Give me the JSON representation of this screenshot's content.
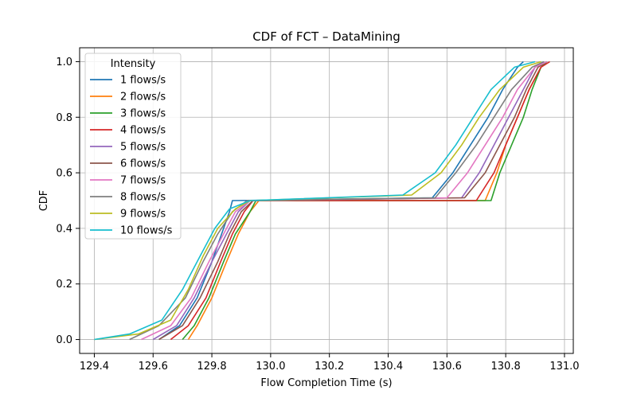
{
  "chart_data": {
    "type": "line",
    "title": "CDF of FCT – DataMining",
    "xlabel": "Flow Completion Time (s)",
    "ylabel": "CDF",
    "xlim": [
      129.35,
      131.03
    ],
    "ylim": [
      -0.05,
      1.05
    ],
    "xticks": [
      "129.4",
      "129.6",
      "129.8",
      "130.0",
      "130.2",
      "130.4",
      "130.6",
      "130.8",
      "131.0"
    ],
    "yticks": [
      "0.0",
      "0.2",
      "0.4",
      "0.6",
      "0.8",
      "1.0"
    ],
    "grid": true,
    "legend": {
      "title": "Intensity",
      "position": "top-left"
    },
    "series": [
      {
        "name": "1 flows/s",
        "color": "#1f77b4",
        "points": [
          [
            129.62,
            0
          ],
          [
            129.69,
            0.05
          ],
          [
            129.75,
            0.15
          ],
          [
            129.8,
            0.28
          ],
          [
            129.84,
            0.4
          ],
          [
            129.86,
            0.46
          ],
          [
            129.87,
            0.5
          ],
          [
            130.55,
            0.51
          ],
          [
            130.62,
            0.6
          ],
          [
            130.68,
            0.7
          ],
          [
            130.74,
            0.8
          ],
          [
            130.79,
            0.9
          ],
          [
            130.84,
            0.98
          ],
          [
            130.86,
            1.0
          ]
        ]
      },
      {
        "name": "2 flows/s",
        "color": "#ff7f0e",
        "points": [
          [
            129.72,
            0
          ],
          [
            129.75,
            0.05
          ],
          [
            129.8,
            0.15
          ],
          [
            129.85,
            0.28
          ],
          [
            129.89,
            0.38
          ],
          [
            129.93,
            0.46
          ],
          [
            129.96,
            0.5
          ],
          [
            130.73,
            0.5
          ],
          [
            130.77,
            0.6
          ],
          [
            130.8,
            0.7
          ],
          [
            130.84,
            0.8
          ],
          [
            130.88,
            0.9
          ],
          [
            130.92,
            0.98
          ],
          [
            130.94,
            1.0
          ]
        ]
      },
      {
        "name": "3 flows/s",
        "color": "#2ca02c",
        "points": [
          [
            129.7,
            0
          ],
          [
            129.74,
            0.05
          ],
          [
            129.79,
            0.15
          ],
          [
            129.84,
            0.28
          ],
          [
            129.88,
            0.38
          ],
          [
            129.93,
            0.46
          ],
          [
            129.95,
            0.5
          ],
          [
            130.75,
            0.5
          ],
          [
            130.78,
            0.6
          ],
          [
            130.82,
            0.7
          ],
          [
            130.86,
            0.8
          ],
          [
            130.89,
            0.9
          ],
          [
            130.92,
            0.98
          ],
          [
            130.94,
            1.0
          ]
        ]
      },
      {
        "name": "4 flows/s",
        "color": "#d62728",
        "points": [
          [
            129.66,
            0
          ],
          [
            129.72,
            0.05
          ],
          [
            129.78,
            0.15
          ],
          [
            129.83,
            0.28
          ],
          [
            129.87,
            0.38
          ],
          [
            129.91,
            0.46
          ],
          [
            129.94,
            0.5
          ],
          [
            130.7,
            0.5
          ],
          [
            130.76,
            0.6
          ],
          [
            130.8,
            0.7
          ],
          [
            130.84,
            0.8
          ],
          [
            130.88,
            0.9
          ],
          [
            130.92,
            0.98
          ],
          [
            130.95,
            1.0
          ]
        ]
      },
      {
        "name": "5 flows/s",
        "color": "#9467bd",
        "points": [
          [
            129.6,
            0
          ],
          [
            129.68,
            0.05
          ],
          [
            129.74,
            0.15
          ],
          [
            129.8,
            0.28
          ],
          [
            129.85,
            0.38
          ],
          [
            129.89,
            0.46
          ],
          [
            129.93,
            0.5
          ],
          [
            130.65,
            0.51
          ],
          [
            130.71,
            0.6
          ],
          [
            130.76,
            0.7
          ],
          [
            130.81,
            0.8
          ],
          [
            130.86,
            0.9
          ],
          [
            130.9,
            0.98
          ],
          [
            130.93,
            1.0
          ]
        ]
      },
      {
        "name": "6 flows/s",
        "color": "#8c564b",
        "points": [
          [
            129.62,
            0
          ],
          [
            129.7,
            0.05
          ],
          [
            129.76,
            0.15
          ],
          [
            129.82,
            0.28
          ],
          [
            129.86,
            0.38
          ],
          [
            129.9,
            0.46
          ],
          [
            129.94,
            0.5
          ],
          [
            130.66,
            0.51
          ],
          [
            130.73,
            0.6
          ],
          [
            130.78,
            0.7
          ],
          [
            130.83,
            0.8
          ],
          [
            130.87,
            0.9
          ],
          [
            130.91,
            0.98
          ],
          [
            130.94,
            1.0
          ]
        ]
      },
      {
        "name": "7 flows/s",
        "color": "#e377c2",
        "points": [
          [
            129.56,
            0
          ],
          [
            129.66,
            0.05
          ],
          [
            129.73,
            0.15
          ],
          [
            129.79,
            0.28
          ],
          [
            129.84,
            0.38
          ],
          [
            129.88,
            0.46
          ],
          [
            129.93,
            0.5
          ],
          [
            130.6,
            0.51
          ],
          [
            130.67,
            0.6
          ],
          [
            130.73,
            0.7
          ],
          [
            130.79,
            0.8
          ],
          [
            130.84,
            0.9
          ],
          [
            130.9,
            0.98
          ],
          [
            130.94,
            1.0
          ]
        ]
      },
      {
        "name": "8 flows/s",
        "color": "#7f7f7f",
        "points": [
          [
            129.52,
            0
          ],
          [
            129.62,
            0.05
          ],
          [
            129.71,
            0.15
          ],
          [
            129.77,
            0.28
          ],
          [
            129.82,
            0.38
          ],
          [
            129.87,
            0.46
          ],
          [
            129.92,
            0.5
          ],
          [
            130.56,
            0.51
          ],
          [
            130.63,
            0.6
          ],
          [
            130.7,
            0.7
          ],
          [
            130.76,
            0.8
          ],
          [
            130.82,
            0.9
          ],
          [
            130.89,
            0.98
          ],
          [
            130.93,
            1.0
          ]
        ]
      },
      {
        "name": "9 flows/s",
        "color": "#bcbd22",
        "points": [
          [
            129.4,
            0
          ],
          [
            129.55,
            0.02
          ],
          [
            129.66,
            0.07
          ],
          [
            129.72,
            0.18
          ],
          [
            129.77,
            0.3
          ],
          [
            129.82,
            0.4
          ],
          [
            129.88,
            0.47
          ],
          [
            129.93,
            0.5
          ],
          [
            130.48,
            0.52
          ],
          [
            130.58,
            0.6
          ],
          [
            130.65,
            0.7
          ],
          [
            130.71,
            0.8
          ],
          [
            130.78,
            0.9
          ],
          [
            130.86,
            0.98
          ],
          [
            130.92,
            1.0
          ]
        ]
      },
      {
        "name": "10 flows/s",
        "color": "#17becf",
        "points": [
          [
            129.4,
            0
          ],
          [
            129.52,
            0.02
          ],
          [
            129.63,
            0.07
          ],
          [
            129.7,
            0.18
          ],
          [
            129.76,
            0.3
          ],
          [
            129.81,
            0.4
          ],
          [
            129.86,
            0.47
          ],
          [
            129.93,
            0.5
          ],
          [
            130.45,
            0.52
          ],
          [
            130.56,
            0.6
          ],
          [
            130.63,
            0.7
          ],
          [
            130.69,
            0.8
          ],
          [
            130.75,
            0.9
          ],
          [
            130.83,
            0.98
          ],
          [
            130.9,
            1.0
          ]
        ]
      }
    ]
  }
}
